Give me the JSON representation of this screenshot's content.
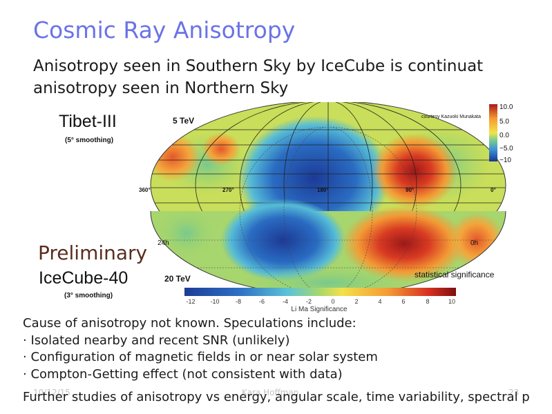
{
  "slide": {
    "title": "Cosmic Ray Anisotropy",
    "subtitle_line1": "Anisotropy seen in Southern Sky by IceCube is continuat",
    "subtitle_line2": "anisotropy seen in Northern Sky"
  },
  "figure": {
    "tibet_label": "Tibet-III",
    "tibet_smoothing": "(5° smoothing)",
    "tibet_energy": "5 TeV",
    "courtesy": "courtesy Kazuoki Munakata",
    "top_scale_ticks": [
      "10.0",
      "5.0",
      "0.0",
      "−5.0",
      "−10"
    ],
    "ra_labels": [
      "360°",
      "270°",
      "180°",
      "90°",
      "0°"
    ],
    "hour_left": "24h",
    "hour_right": "0h",
    "preliminary": "Preliminary",
    "icecube_label": "IceCube-40",
    "icecube_smoothing": "(3° smoothing)",
    "icecube_energy": "20 TeV",
    "significance_label": "statistical significance",
    "bottom_scale_ticks": [
      "-12",
      "-10",
      "-8",
      "-6",
      "-4",
      "-2",
      "0",
      "2",
      "4",
      "6",
      "8",
      "10"
    ],
    "bottom_scale_title": "Li Ma Significance",
    "colors": {
      "deep_blue": "#1c3f9e",
      "blue": "#2b78c9",
      "cyan": "#55c2d8",
      "green": "#9dd46a",
      "yellow": "#f3e24a",
      "orange": "#f19a35",
      "red": "#d7301f",
      "dark_red": "#8b1414"
    }
  },
  "bullets": {
    "intro": "Cause of anisotropy not known. Speculations include:",
    "items": [
      "· Isolated nearby and recent SNR (unlikely)",
      "· Configuration of magnetic fields in or near solar system",
      "· Compton-Getting effect (not consistent with data)"
    ]
  },
  "footer": {
    "date": "10/12/15",
    "author": "Kara Hoffman",
    "page": "23",
    "note": "Further studies of anisotropy vs energy, angular scale, time variability, spectral p"
  }
}
